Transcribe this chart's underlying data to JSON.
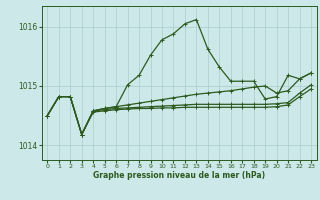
{
  "xlabel": "Graphe pression niveau de la mer (hPa)",
  "bg_color": "#cce8e8",
  "grid_color": "#aacccc",
  "line_color": "#2d5a1e",
  "ylim": [
    1013.75,
    1016.35
  ],
  "xlim": [
    -0.5,
    23.5
  ],
  "yticks": [
    1014,
    1015,
    1016
  ],
  "xticks": [
    0,
    1,
    2,
    3,
    4,
    5,
    6,
    7,
    8,
    9,
    10,
    11,
    12,
    13,
    14,
    15,
    16,
    17,
    18,
    19,
    20,
    21,
    22,
    23
  ],
  "y_main": [
    1014.5,
    1014.82,
    1014.82,
    1014.18,
    1014.58,
    1014.62,
    1014.65,
    1015.02,
    1015.18,
    1015.52,
    1015.78,
    1015.88,
    1016.05,
    1016.12,
    1015.62,
    1015.32,
    1015.08,
    1015.08,
    1015.08,
    1014.78,
    1014.82,
    1015.18,
    1015.12,
    1015.22
  ],
  "y_diag": [
    1014.5,
    1014.82,
    1014.82,
    1014.18,
    1014.58,
    1014.62,
    1014.65,
    1014.68,
    1014.71,
    1014.74,
    1014.77,
    1014.8,
    1014.83,
    1014.86,
    1014.88,
    1014.9,
    1014.92,
    1014.95,
    1014.98,
    1015.0,
    1014.88,
    1014.92,
    1015.12,
    1015.22
  ],
  "y_flat1": [
    1014.5,
    1014.82,
    1014.82,
    1014.18,
    1014.58,
    1014.6,
    1014.62,
    1014.63,
    1014.64,
    1014.65,
    1014.66,
    1014.67,
    1014.68,
    1014.69,
    1014.69,
    1014.69,
    1014.69,
    1014.69,
    1014.69,
    1014.69,
    1014.7,
    1014.72,
    1014.88,
    1015.02
  ],
  "y_flat2": [
    1014.5,
    1014.82,
    1014.82,
    1014.18,
    1014.56,
    1014.58,
    1014.6,
    1014.61,
    1014.62,
    1014.62,
    1014.63,
    1014.63,
    1014.64,
    1014.64,
    1014.64,
    1014.64,
    1014.64,
    1014.64,
    1014.64,
    1014.64,
    1014.65,
    1014.68,
    1014.82,
    1014.95
  ]
}
